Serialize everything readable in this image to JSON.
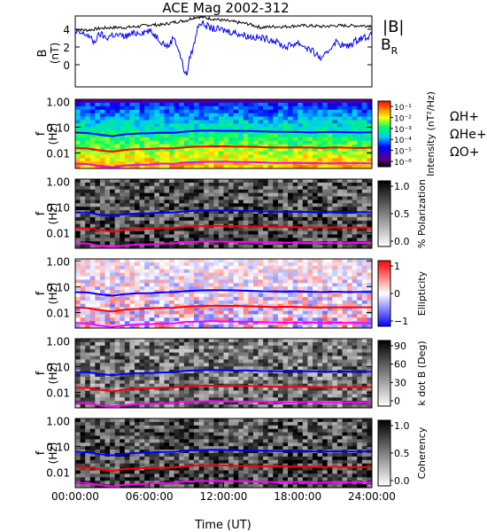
{
  "title": "ACE Mag 2002-312",
  "chart_data": [
    {
      "id": "mag",
      "type": "line",
      "ylabel": "B (nT)",
      "ylim": [
        -2.5,
        5.5
      ],
      "yticks": [
        0,
        2,
        4
      ],
      "series": [
        {
          "name": "|B|",
          "color": "#000000",
          "x": [
            0,
            1,
            2,
            3,
            4,
            5,
            6,
            7,
            8,
            9,
            9.5,
            10,
            11,
            12,
            13,
            14,
            15,
            16,
            17,
            18,
            19,
            20,
            21,
            22,
            23,
            24
          ],
          "y": [
            4.0,
            3.9,
            4.1,
            4.2,
            4.2,
            4.3,
            4.5,
            4.5,
            4.8,
            5.0,
            5.3,
            5.4,
            5.2,
            5.0,
            4.8,
            4.6,
            4.2,
            4.3,
            4.3,
            4.4,
            4.4,
            4.3,
            4.4,
            4.4,
            4.4,
            4.4
          ]
        },
        {
          "name": "B_R",
          "color": "#0000ff",
          "x": [
            0,
            1,
            1.5,
            2,
            2.5,
            3,
            4,
            5,
            6,
            6.5,
            7,
            7.5,
            8,
            8.5,
            8.8,
            9,
            9.3,
            9.6,
            10,
            10.5,
            11,
            12,
            13,
            14,
            15,
            16,
            17,
            18,
            19,
            20,
            21,
            22,
            23,
            24
          ],
          "y": [
            3.6,
            3.4,
            2.5,
            3.5,
            3.0,
            3.4,
            3.2,
            3.6,
            3.8,
            3.3,
            2.6,
            2.0,
            3.2,
            1.0,
            -0.5,
            -1.3,
            1.0,
            2.2,
            4.8,
            4.5,
            4.1,
            3.9,
            3.6,
            3.2,
            3.0,
            2.8,
            2.0,
            2.5,
            1.7,
            0.6,
            2.6,
            2.0,
            3.0,
            3.3
          ]
        }
      ]
    },
    {
      "id": "intensity",
      "type": "heatmap",
      "ylabel": "f (Hz)",
      "yticks": [
        "1.00",
        "0.10",
        "0.01"
      ],
      "colorbar": {
        "label": "Intensity (nT²/Hz)",
        "ticks": [
          "10⁻¹",
          "10⁻²",
          "10⁻³",
          "10⁻⁴",
          "10⁻⁵",
          "10⁻⁶"
        ]
      },
      "legend": [
        "ΩH+",
        "ΩHe+",
        "ΩO+"
      ]
    },
    {
      "id": "polarization",
      "type": "heatmap",
      "ylabel": "f (Hz)",
      "yticks": [
        "1.00",
        "0.10",
        "0.01"
      ],
      "colorbar": {
        "label": "% Polarization",
        "ticks": [
          "1.0",
          "0.5",
          "0.0"
        ]
      }
    },
    {
      "id": "ellipticity",
      "type": "heatmap",
      "ylabel": "f (Hz)",
      "yticks": [
        "1.00",
        "0.10",
        "0.01"
      ],
      "colorbar": {
        "label": "Ellipticity",
        "ticks": [
          "1",
          "0",
          "−1"
        ]
      }
    },
    {
      "id": "kdotb",
      "type": "heatmap",
      "ylabel": "f (Hz)",
      "yticks": [
        "1.00",
        "0.10",
        "0.01"
      ],
      "colorbar": {
        "label": "k dot B (Deg)",
        "ticks": [
          "90",
          "60",
          "30",
          "0"
        ]
      }
    },
    {
      "id": "coherency",
      "type": "heatmap",
      "ylabel": "f (Hz)",
      "yticks": [
        "1.00",
        "0.10",
        "0.01"
      ],
      "colorbar": {
        "label": "Coherency",
        "ticks": [
          "1.0",
          "0.5",
          "0.0"
        ]
      }
    }
  ],
  "cyclotron_lines": [
    {
      "name": "ΩH+",
      "color": "#0000ff",
      "f": [
        0.062,
        0.06,
        0.05,
        0.045,
        0.052,
        0.056,
        0.057,
        0.06,
        0.061,
        0.068,
        0.072,
        0.073,
        0.072,
        0.071,
        0.07,
        0.068,
        0.066,
        0.066,
        0.065,
        0.064,
        0.063,
        0.064,
        0.063,
        0.063,
        0.063
      ]
    },
    {
      "name": "ΩHe+",
      "color": "#ff0000",
      "f": [
        0.0155,
        0.015,
        0.0125,
        0.011,
        0.013,
        0.014,
        0.0143,
        0.015,
        0.0153,
        0.017,
        0.018,
        0.0183,
        0.018,
        0.0178,
        0.0175,
        0.017,
        0.0165,
        0.0165,
        0.0163,
        0.016,
        0.0158,
        0.016,
        0.0158,
        0.0158,
        0.0158
      ]
    },
    {
      "name": "ΩO+",
      "color": "#ff00ff",
      "f": [
        0.0039,
        0.0038,
        0.0031,
        0.0028,
        0.0032,
        0.0035,
        0.0036,
        0.0038,
        0.0038,
        0.0043,
        0.0045,
        0.0046,
        0.0045,
        0.0044,
        0.0044,
        0.0043,
        0.0041,
        0.0041,
        0.0041,
        0.004,
        0.004,
        0.004,
        0.004,
        0.004,
        0.004
      ]
    }
  ],
  "mag_legend": [
    "|B|",
    "B"
  ],
  "mag_legend_sub": "R",
  "xaxis": {
    "label": "Time (UT)",
    "ticks": [
      "00:00:00",
      "06:00:00",
      "12:00:00",
      "18:00:00",
      "24:00:00"
    ],
    "range": [
      0,
      24
    ]
  },
  "colors": {
    "H": "#0000ff",
    "He": "#ff0000",
    "O": "#ff00ff"
  }
}
